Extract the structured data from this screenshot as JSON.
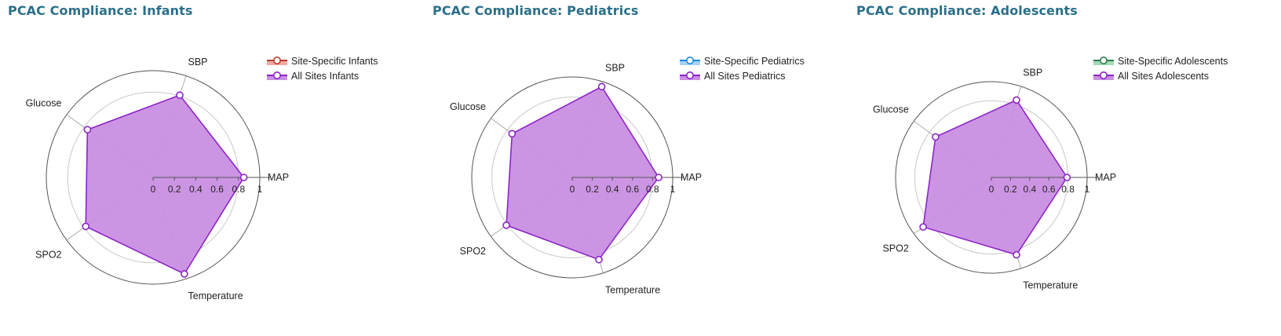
{
  "panels": [
    {
      "title": "PCAC Compliance: Infants",
      "chart_data": {
        "type": "radar",
        "axes": [
          "MAP",
          "SBP",
          "Glucose",
          "SPO2",
          "Temperature"
        ],
        "ticks": [
          "0",
          "0.2",
          "0.4",
          "0.6",
          "0.8",
          "1"
        ],
        "range": [
          0,
          1
        ],
        "legend_position": "top-right",
        "series": [
          {
            "name": "Site-Specific Infants",
            "values": [],
            "color": "#c0392b",
            "fill": "#f1a9a0"
          },
          {
            "name": "All Sites Infants",
            "values": [
              0.85,
              0.81,
              0.76,
              0.78,
              0.95
            ],
            "color": "#8e24c8",
            "fill": "#c98fe2"
          }
        ]
      }
    },
    {
      "title": "PCAC Compliance: Pediatrics",
      "chart_data": {
        "type": "radar",
        "axes": [
          "MAP",
          "SBP",
          "Glucose",
          "SPO2",
          "Temperature"
        ],
        "ticks": [
          "0",
          "0.2",
          "0.4",
          "0.6",
          "0.8",
          "1"
        ],
        "range": [
          0,
          1
        ],
        "legend_position": "top-right",
        "series": [
          {
            "name": "Site-Specific Pediatrics",
            "values": [],
            "color": "#1e88e5",
            "fill": "#a6d3f5"
          },
          {
            "name": "All Sites Pediatrics",
            "values": [
              0.86,
              0.95,
              0.74,
              0.81,
              0.86
            ],
            "color": "#8e24c8",
            "fill": "#c98fe2"
          }
        ]
      }
    },
    {
      "title": "PCAC Compliance: Adolescents",
      "chart_data": {
        "type": "radar",
        "axes": [
          "MAP",
          "SBP",
          "Glucose",
          "SPO2",
          "Temperature"
        ],
        "ticks": [
          "0",
          "0.2",
          "0.4",
          "0.6",
          "0.8",
          "1"
        ],
        "range": [
          0,
          1
        ],
        "legend_position": "top-right",
        "series": [
          {
            "name": "Site-Specific Adolescents",
            "values": [],
            "color": "#2e7d4f",
            "fill": "#a3d9b5"
          },
          {
            "name": "All Sites Adolescents",
            "values": [
              0.79,
              0.85,
              0.72,
              0.88,
              0.85
            ],
            "color": "#8e24c8",
            "fill": "#c98fe2"
          }
        ]
      }
    }
  ]
}
